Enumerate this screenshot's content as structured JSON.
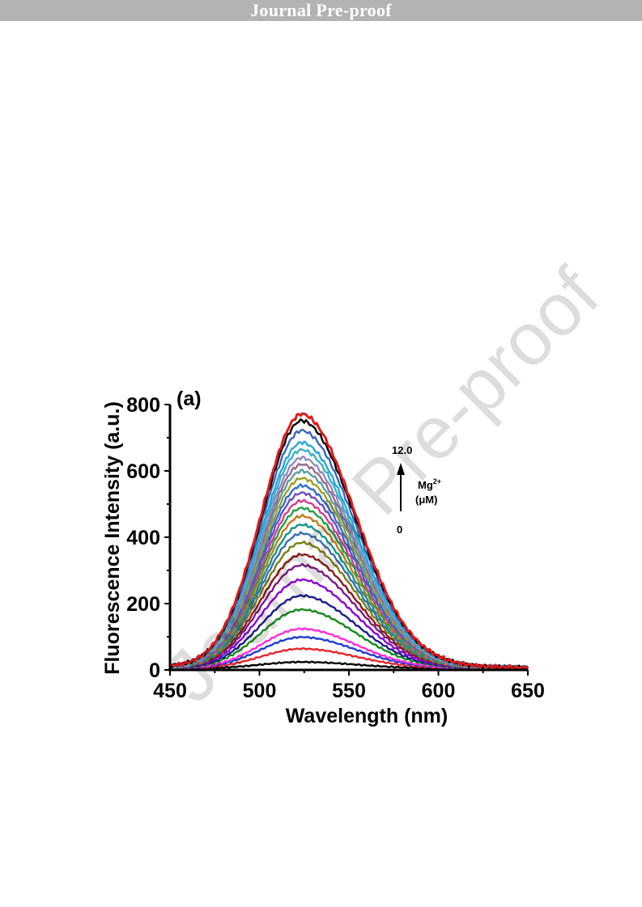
{
  "header": {
    "banner_text": "Journal Pre-proof",
    "watermark_text": "Journal Pre-proof"
  },
  "chart_data": {
    "type": "line",
    "panel_label": "(a)",
    "title": "",
    "xlabel": "Wavelength (nm)",
    "ylabel": "Fluorescence Intensity (a.u.)",
    "xlim": [
      450,
      650
    ],
    "ylim": [
      0,
      800
    ],
    "x_ticks": [
      450,
      500,
      550,
      600,
      650
    ],
    "y_ticks": [
      0,
      200,
      400,
      600,
      800
    ],
    "grid": false,
    "peak_wavelength": 524,
    "annotation": {
      "top": "12.0",
      "bottom": "0",
      "ion_base": "Mg",
      "ion_sup": "2+",
      "unit": "(μM)"
    },
    "series": [
      {
        "peak": 20,
        "color": "#000000"
      },
      {
        "peak": 60,
        "color": "#e8232a"
      },
      {
        "peak": 95,
        "color": "#1f3bd6"
      },
      {
        "peak": 120,
        "color": "#ff2bd8"
      },
      {
        "peak": 178,
        "color": "#138a18"
      },
      {
        "peak": 220,
        "color": "#1b1b8c"
      },
      {
        "peak": 268,
        "color": "#8a00d4"
      },
      {
        "peak": 312,
        "color": "#7b1a86"
      },
      {
        "peak": 344,
        "color": "#8b1a1a"
      },
      {
        "peak": 380,
        "color": "#7a7f12"
      },
      {
        "peak": 408,
        "color": "#3a6fb0"
      },
      {
        "peak": 434,
        "color": "#12958a"
      },
      {
        "peak": 460,
        "color": "#c07a1a"
      },
      {
        "peak": 484,
        "color": "#20a24a"
      },
      {
        "peak": 506,
        "color": "#d1408e"
      },
      {
        "peak": 530,
        "color": "#6a4fc0"
      },
      {
        "peak": 552,
        "color": "#2e6fd0"
      },
      {
        "peak": 574,
        "color": "#a0a020"
      },
      {
        "peak": 596,
        "color": "#5aa0a0"
      },
      {
        "peak": 616,
        "color": "#9a6a8a"
      },
      {
        "peak": 636,
        "color": "#8c8cc0"
      },
      {
        "peak": 660,
        "color": "#40b0c8"
      },
      {
        "peak": 682,
        "color": "#2aa8d8"
      },
      {
        "peak": 718,
        "color": "#3a66b8"
      },
      {
        "peak": 748,
        "color": "#000000"
      },
      {
        "peak": 768,
        "color": "#e01a1a"
      }
    ]
  }
}
